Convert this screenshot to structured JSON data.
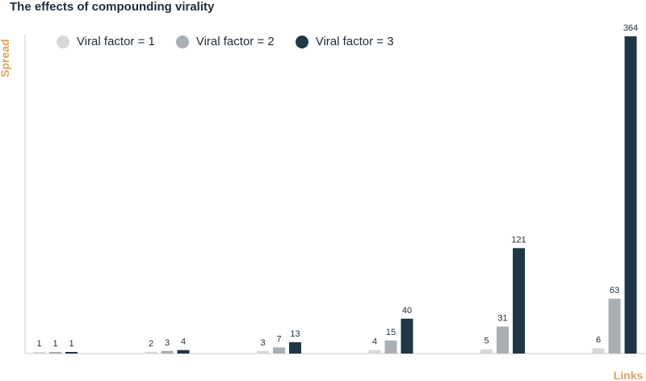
{
  "title": "The effects of compounding virality",
  "chart_data": {
    "type": "bar",
    "title": "The effects of compounding virality",
    "xlabel": "Links",
    "ylabel": "Spread",
    "categories": [
      "",
      "",
      "",
      "",
      "",
      ""
    ],
    "series": [
      {
        "name": "Viral factor = 1",
        "color": "#d5d9dc",
        "values": [
          1,
          2,
          3,
          4,
          5,
          6
        ]
      },
      {
        "name": "Viral factor = 2",
        "color": "#a8b0b5",
        "values": [
          1,
          3,
          7,
          15,
          31,
          63
        ]
      },
      {
        "name": "Viral factor = 3",
        "color": "#203746",
        "values": [
          1,
          4,
          13,
          40,
          121,
          364
        ]
      }
    ],
    "ylim": [
      0,
      364
    ],
    "grid": false,
    "legend_position": "top-left",
    "axis_label_color": "#e0a45f"
  }
}
